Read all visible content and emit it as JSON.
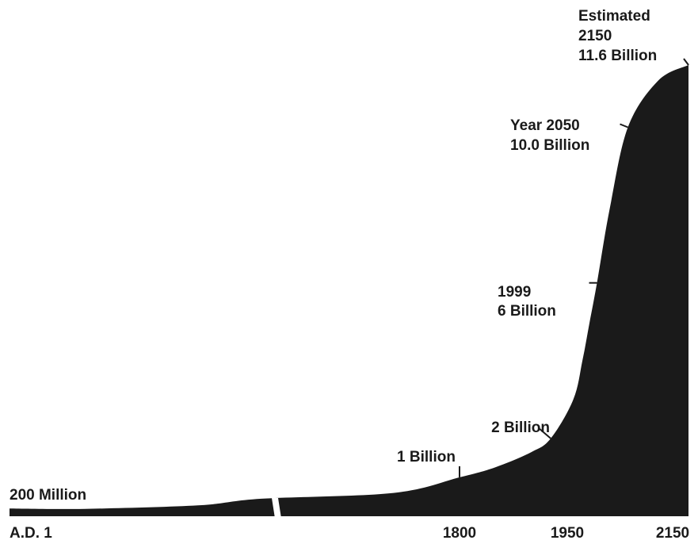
{
  "chart_data": {
    "type": "area",
    "title": "",
    "xlabel": "",
    "ylabel": "",
    "unit": "billion",
    "axis_break": true,
    "x_ticks": [
      "A.D. 1",
      "1800",
      "1950",
      "2150"
    ],
    "series": [
      {
        "color": "#1a1a1a",
        "points": [
          {
            "x": 1,
            "y": 0.2
          },
          {
            "x": 400,
            "y": 0.19
          },
          {
            "x": 1000,
            "y": 0.28
          },
          {
            "x": 1500,
            "y": 0.45
          },
          {
            "x": 1700,
            "y": 0.6
          },
          {
            "x": 1800,
            "y": 1.0
          },
          {
            "x": 1850,
            "y": 1.26
          },
          {
            "x": 1900,
            "y": 1.65
          },
          {
            "x": 1927,
            "y": 2.0
          },
          {
            "x": 1960,
            "y": 3.0
          },
          {
            "x": 1975,
            "y": 4.0
          },
          {
            "x": 1987,
            "y": 5.0
          },
          {
            "x": 1999,
            "y": 6.0
          },
          {
            "x": 2020,
            "y": 7.9
          },
          {
            "x": 2050,
            "y": 10.0
          },
          {
            "x": 2100,
            "y": 11.2
          },
          {
            "x": 2150,
            "y": 11.6
          }
        ]
      }
    ],
    "annotations": [
      {
        "lines": [
          "200 Million"
        ],
        "x": 1,
        "y": 0.2
      },
      {
        "lines": [
          "1 Billion"
        ],
        "x": 1800,
        "y": 1.0
      },
      {
        "lines": [
          "2 Billion"
        ],
        "x": 1927,
        "y": 2.0
      },
      {
        "lines": [
          "1999",
          "6 Billion"
        ],
        "x": 1999,
        "y": 6.0
      },
      {
        "lines": [
          "Year 2050",
          "10.0 Billion"
        ],
        "x": 2050,
        "y": 10.0
      },
      {
        "lines": [
          "Estimated",
          "2150",
          "11.6 Billion"
        ],
        "x": 2150,
        "y": 11.6
      }
    ]
  }
}
